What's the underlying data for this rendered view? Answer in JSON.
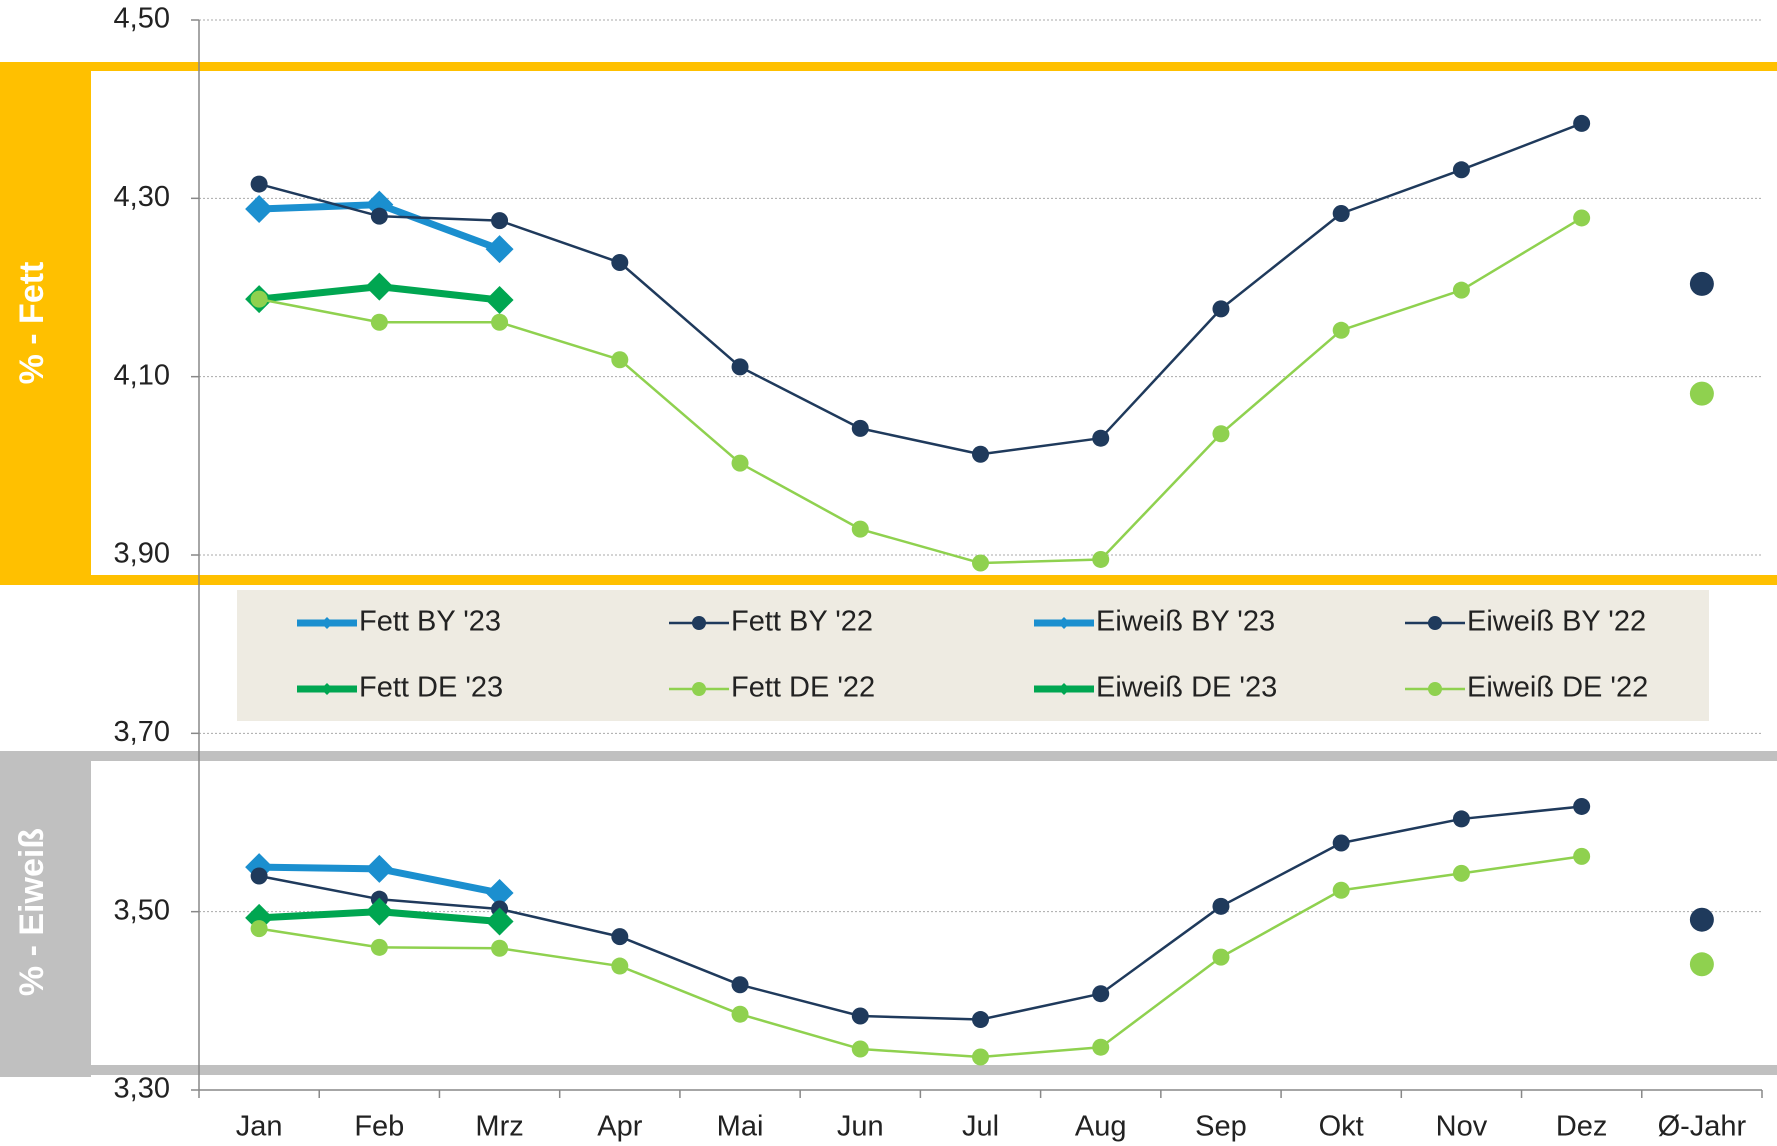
{
  "chart_data": {
    "type": "line",
    "panel_labels": [
      "% - Fett",
      "% - Eiweiß"
    ],
    "categories": [
      "Jan",
      "Feb",
      "Mrz",
      "Apr",
      "Mai",
      "Jun",
      "Jul",
      "Aug",
      "Sep",
      "Okt",
      "Nov",
      "Dez",
      "Ø-Jahr"
    ],
    "ylim": [
      3.3,
      4.5
    ],
    "yticks": [
      {
        "value": 3.3,
        "label": "3,30"
      },
      {
        "value": 3.5,
        "label": "3,50"
      },
      {
        "value": 3.7,
        "label": "3,70"
      },
      {
        "value": 3.9,
        "label": "3,90"
      },
      {
        "value": 4.1,
        "label": "4,10"
      },
      {
        "value": 4.3,
        "label": "4,30"
      },
      {
        "value": 4.5,
        "label": "4,50"
      }
    ],
    "grid": true,
    "series": [
      {
        "name": "Fett BY '23",
        "color": "#1b8fcf",
        "marker": "diamond",
        "values": [
          4.288,
          4.293,
          4.243,
          null,
          null,
          null,
          null,
          null,
          null,
          null,
          null,
          null,
          null
        ]
      },
      {
        "name": "Fett BY '22",
        "color": "#1f3a5c",
        "marker": "circle",
        "values": [
          4.316,
          4.28,
          4.275,
          4.228,
          4.111,
          4.042,
          4.013,
          4.031,
          4.176,
          4.283,
          4.332,
          4.384,
          4.204
        ]
      },
      {
        "name": "Eiweiß BY '23",
        "color": "#1b8fcf",
        "marker": "diamond",
        "values": [
          3.55,
          3.548,
          3.521,
          null,
          null,
          null,
          null,
          null,
          null,
          null,
          null,
          null,
          null
        ]
      },
      {
        "name": "Eiweiß BY '22",
        "color": "#1f3a5c",
        "marker": "circle",
        "values": [
          3.54,
          3.514,
          3.503,
          3.472,
          3.418,
          3.383,
          3.379,
          3.408,
          3.506,
          3.577,
          3.604,
          3.618,
          3.491
        ]
      },
      {
        "name": "Fett DE '23",
        "color": "#00a651",
        "marker": "diamond",
        "values": [
          4.187,
          4.201,
          4.186,
          null,
          null,
          null,
          null,
          null,
          null,
          null,
          null,
          null,
          null
        ]
      },
      {
        "name": "Fett DE '22",
        "color": "#8fd14f",
        "marker": "circle",
        "values": [
          4.187,
          4.161,
          4.161,
          4.119,
          4.003,
          3.929,
          3.891,
          3.895,
          4.036,
          4.152,
          4.197,
          4.278,
          4.081
        ]
      },
      {
        "name": "Eiweiß DE '23",
        "color": "#00a651",
        "marker": "diamond",
        "values": [
          3.493,
          3.5,
          3.489,
          null,
          null,
          null,
          null,
          null,
          null,
          null,
          null,
          null,
          null
        ]
      },
      {
        "name": "Eiweiß DE '22",
        "color": "#8fd14f",
        "marker": "circle",
        "values": [
          3.481,
          3.46,
          3.459,
          3.439,
          3.385,
          3.346,
          3.337,
          3.348,
          3.449,
          3.524,
          3.543,
          3.562,
          3.441
        ]
      }
    ]
  }
}
